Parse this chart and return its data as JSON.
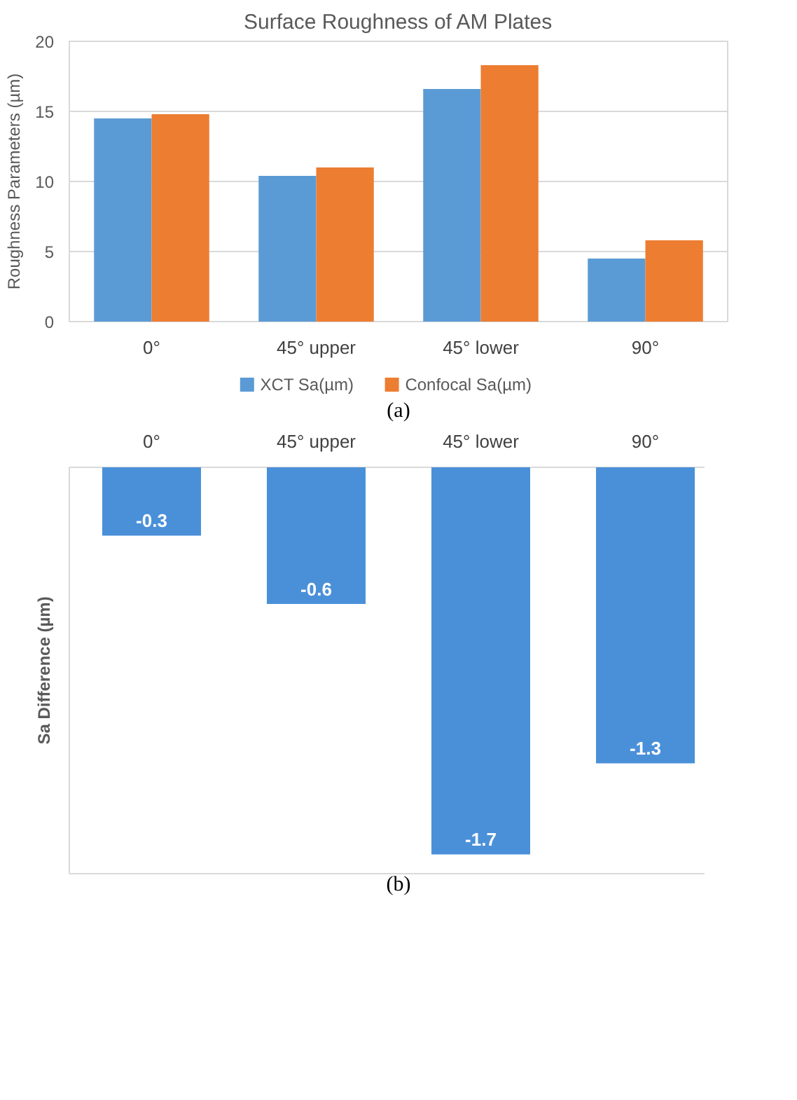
{
  "chart_data": [
    {
      "type": "bar",
      "title": "Surface Roughness of AM Plates",
      "ylabel": "Roughness Parameters (µm)",
      "categories": [
        "0°",
        "45° upper",
        "45° lower",
        "90°"
      ],
      "series": [
        {
          "name": "XCT Sa(µm)",
          "color": "#5b9bd5",
          "values": [
            14.5,
            10.4,
            16.6,
            4.5
          ]
        },
        {
          "name": "Confocal Sa(µm)",
          "color": "#ed7d31",
          "values": [
            14.8,
            11.0,
            18.3,
            5.8
          ]
        }
      ],
      "ylim": [
        0,
        20
      ],
      "yticks": [
        0,
        5,
        10,
        15,
        20
      ],
      "grid": "y",
      "legend": "bottom",
      "annotations": [
        "(a)"
      ]
    },
    {
      "type": "bar",
      "ylabel": "Sa Difference (µm)",
      "categories": [
        "0°",
        "45° upper",
        "45° lower",
        "90°"
      ],
      "series": [
        {
          "color": "#4a90d9",
          "values": [
            -0.3,
            -0.6,
            -1.7,
            -1.3
          ]
        }
      ],
      "data_labels": true,
      "tick_labels": "x",
      "annotations": [
        "(b)"
      ]
    }
  ]
}
